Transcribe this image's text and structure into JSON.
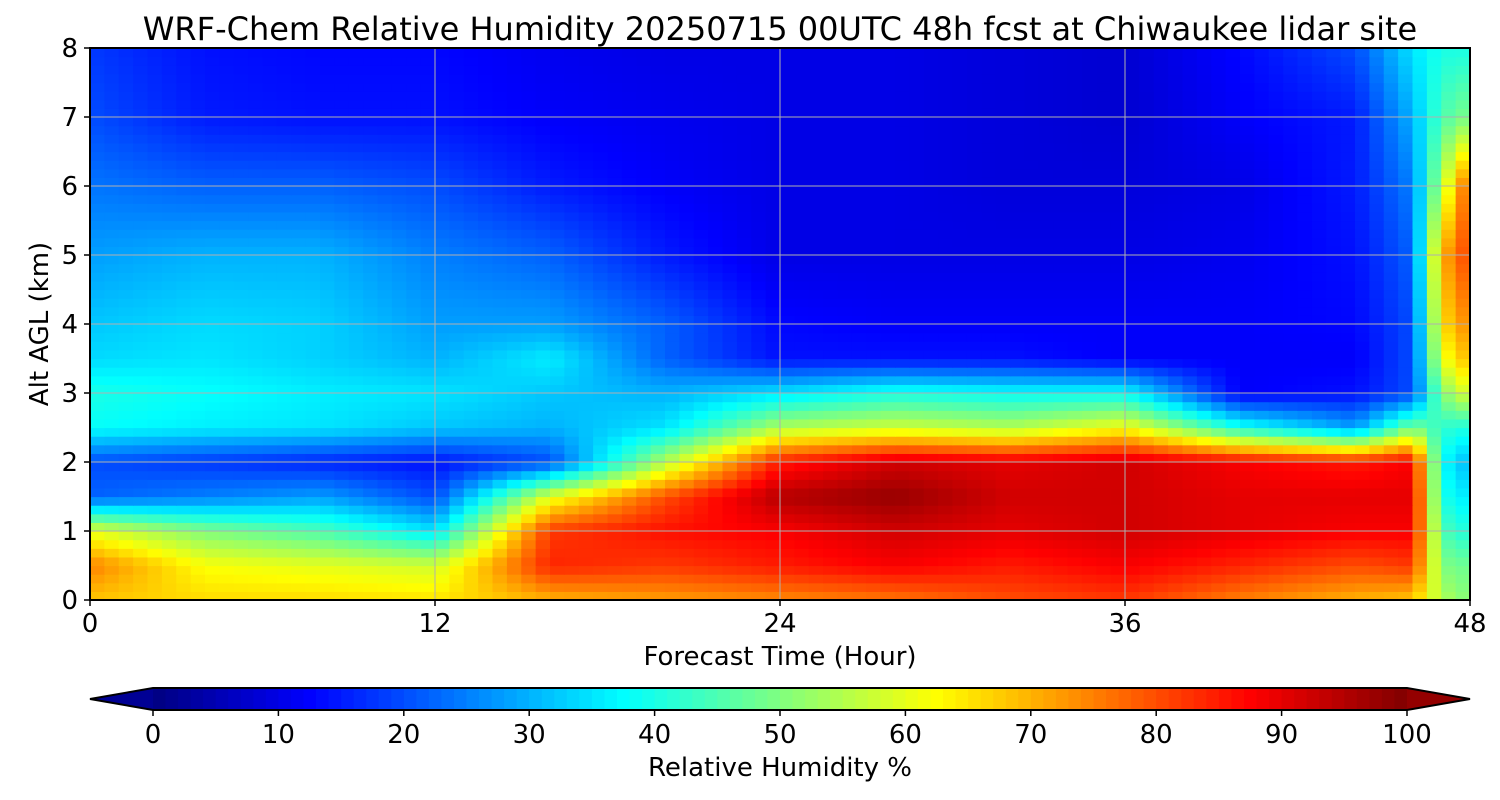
{
  "chart_data": {
    "type": "heatmap",
    "title": "WRF-Chem Relative Humidity 20250715 00UTC 48h fcst at Chiwaukee lidar site",
    "xlabel": "Forecast Time (Hour)",
    "ylabel": "Alt AGL (km)",
    "xlim": [
      0,
      48
    ],
    "ylim": [
      0,
      8
    ],
    "xticks": [
      "0",
      "12",
      "24",
      "36",
      "48"
    ],
    "yticks": [
      "0",
      "1",
      "2",
      "3",
      "4",
      "5",
      "6",
      "7",
      "8"
    ],
    "grid": true,
    "colormap": "jet",
    "colorbar": {
      "label": "Relative Humidity %",
      "range": [
        0,
        100
      ],
      "extend": "both",
      "ticks": [
        "0",
        "10",
        "20",
        "30",
        "40",
        "50",
        "60",
        "70",
        "80",
        "90",
        "100"
      ]
    },
    "x": [
      0,
      4,
      8,
      12,
      16,
      20,
      24,
      28,
      32,
      36,
      40,
      44,
      46,
      47,
      48
    ],
    "y": [
      0,
      0.5,
      1,
      1.5,
      2,
      2.5,
      3,
      3.5,
      4,
      5,
      6,
      7,
      8
    ],
    "z": [
      [
        68,
        66,
        66,
        65,
        70,
        72,
        74,
        76,
        80,
        82,
        75,
        70,
        68,
        55,
        50
      ],
      [
        75,
        62,
        60,
        58,
        84,
        82,
        85,
        88,
        85,
        88,
        84,
        80,
        82,
        50,
        48
      ],
      [
        60,
        50,
        45,
        35,
        82,
        86,
        88,
        92,
        90,
        92,
        90,
        88,
        88,
        45,
        40
      ],
      [
        22,
        25,
        28,
        20,
        60,
        80,
        95,
        98,
        92,
        92,
        90,
        90,
        90,
        40,
        35
      ],
      [
        20,
        18,
        16,
        14,
        20,
        55,
        85,
        92,
        90,
        92,
        88,
        85,
        88,
        38,
        30
      ],
      [
        38,
        36,
        35,
        32,
        30,
        35,
        55,
        58,
        55,
        62,
        40,
        28,
        50,
        42,
        40
      ],
      [
        40,
        38,
        36,
        35,
        32,
        30,
        35,
        40,
        38,
        38,
        12,
        14,
        20,
        50,
        60
      ],
      [
        34,
        35,
        33,
        30,
        36,
        22,
        14,
        14,
        14,
        12,
        12,
        12,
        20,
        60,
        70
      ],
      [
        32,
        34,
        33,
        28,
        28,
        22,
        13,
        12,
        12,
        12,
        12,
        13,
        20,
        65,
        75
      ],
      [
        28,
        30,
        30,
        25,
        22,
        15,
        10,
        10,
        10,
        10,
        11,
        14,
        22,
        70,
        82
      ],
      [
        24,
        22,
        22,
        20,
        15,
        12,
        10,
        10,
        9,
        9,
        10,
        15,
        25,
        55,
        80
      ],
      [
        20,
        15,
        14,
        14,
        12,
        11,
        10,
        10,
        9,
        8,
        12,
        15,
        30,
        45,
        50
      ],
      [
        18,
        14,
        13,
        13,
        11,
        10,
        10,
        10,
        9,
        8,
        13,
        20,
        35,
        40,
        40
      ]
    ]
  }
}
